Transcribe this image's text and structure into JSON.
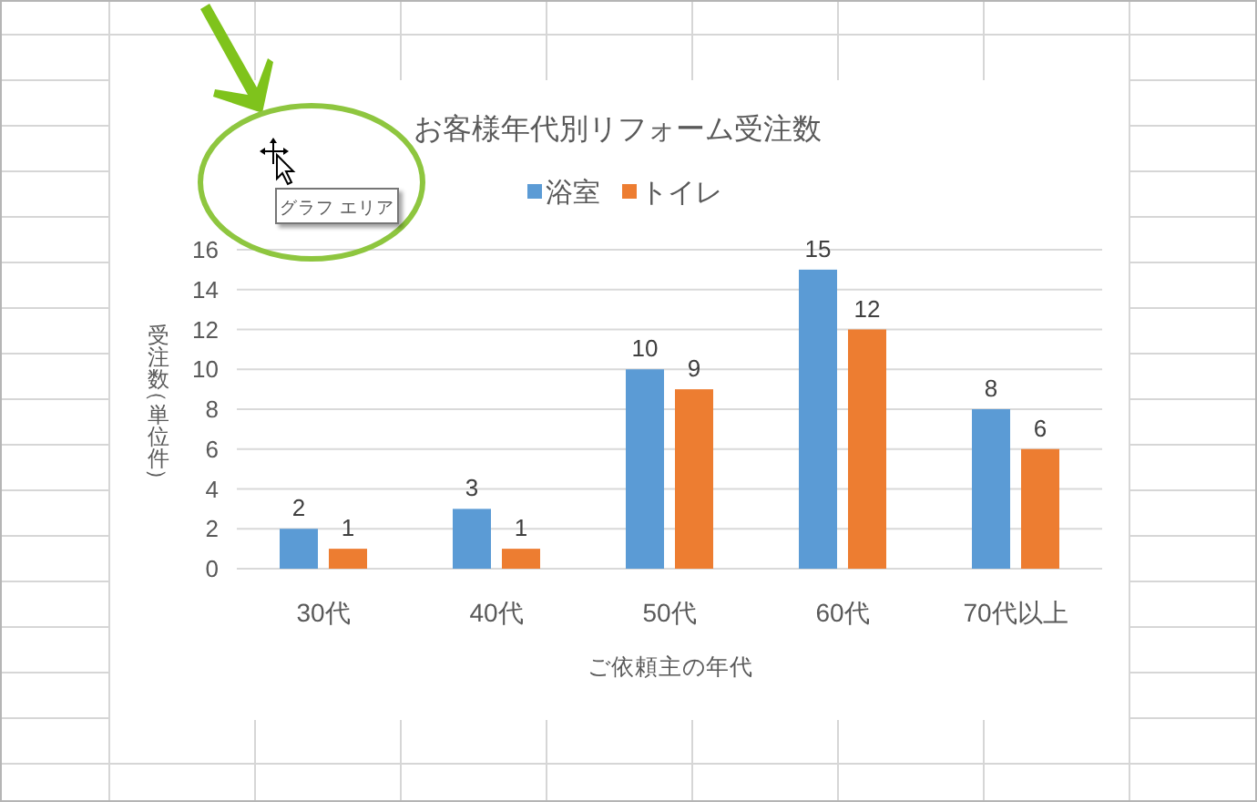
{
  "chart_data": {
    "type": "bar",
    "title": "お客様年代別リフォーム受注数",
    "xlabel": "ご依頼主の年代",
    "ylabel": "受注数（単位件）",
    "categories": [
      "30代",
      "40代",
      "50代",
      "60代",
      "70代以上"
    ],
    "series": [
      {
        "name": "浴室",
        "color": "#5b9bd5",
        "values": [
          2,
          3,
          10,
          15,
          8
        ]
      },
      {
        "name": "トイレ",
        "color": "#ed7d31",
        "values": [
          1,
          1,
          9,
          12,
          6
        ]
      }
    ],
    "ylim": [
      0,
      16
    ],
    "yticks": [
      0,
      2,
      4,
      6,
      8,
      10,
      12,
      14,
      16
    ],
    "grid": "y",
    "legend": "top",
    "data_labels": true,
    "annotations": [
      "グラフ エリア"
    ]
  }
}
